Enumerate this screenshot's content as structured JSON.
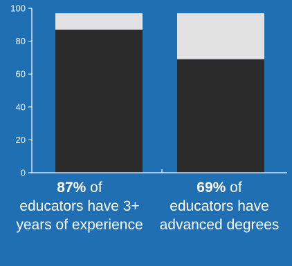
{
  "colors": {
    "background": "#1f6fb2",
    "bar_fill": "#2b2b2b",
    "bar_remainder": "#e2e2e2",
    "axis": "#ffffff",
    "text": "#ffffff"
  },
  "chart_data": {
    "type": "bar",
    "stacked": true,
    "categories": [
      "87% of educators have 3+ years of experience",
      "69% of educators have advanced degrees"
    ],
    "series": [
      {
        "values": [
          87,
          69
        ],
        "color": "#2b2b2b"
      },
      {
        "values": [
          13,
          31
        ],
        "color": "#e2e2e2"
      }
    ],
    "ylim": [
      0,
      100
    ],
    "yticks": [
      "0",
      "20",
      "40",
      "60",
      "80",
      "100"
    ],
    "grid": false,
    "legend": "none"
  },
  "captions": [
    {
      "percent": "87%",
      "text_first": " of",
      "text_rest": "educators have 3+ years of experience"
    },
    {
      "percent": "69%",
      "text_first": " of",
      "text_rest": "educators have advanced degrees"
    }
  ]
}
